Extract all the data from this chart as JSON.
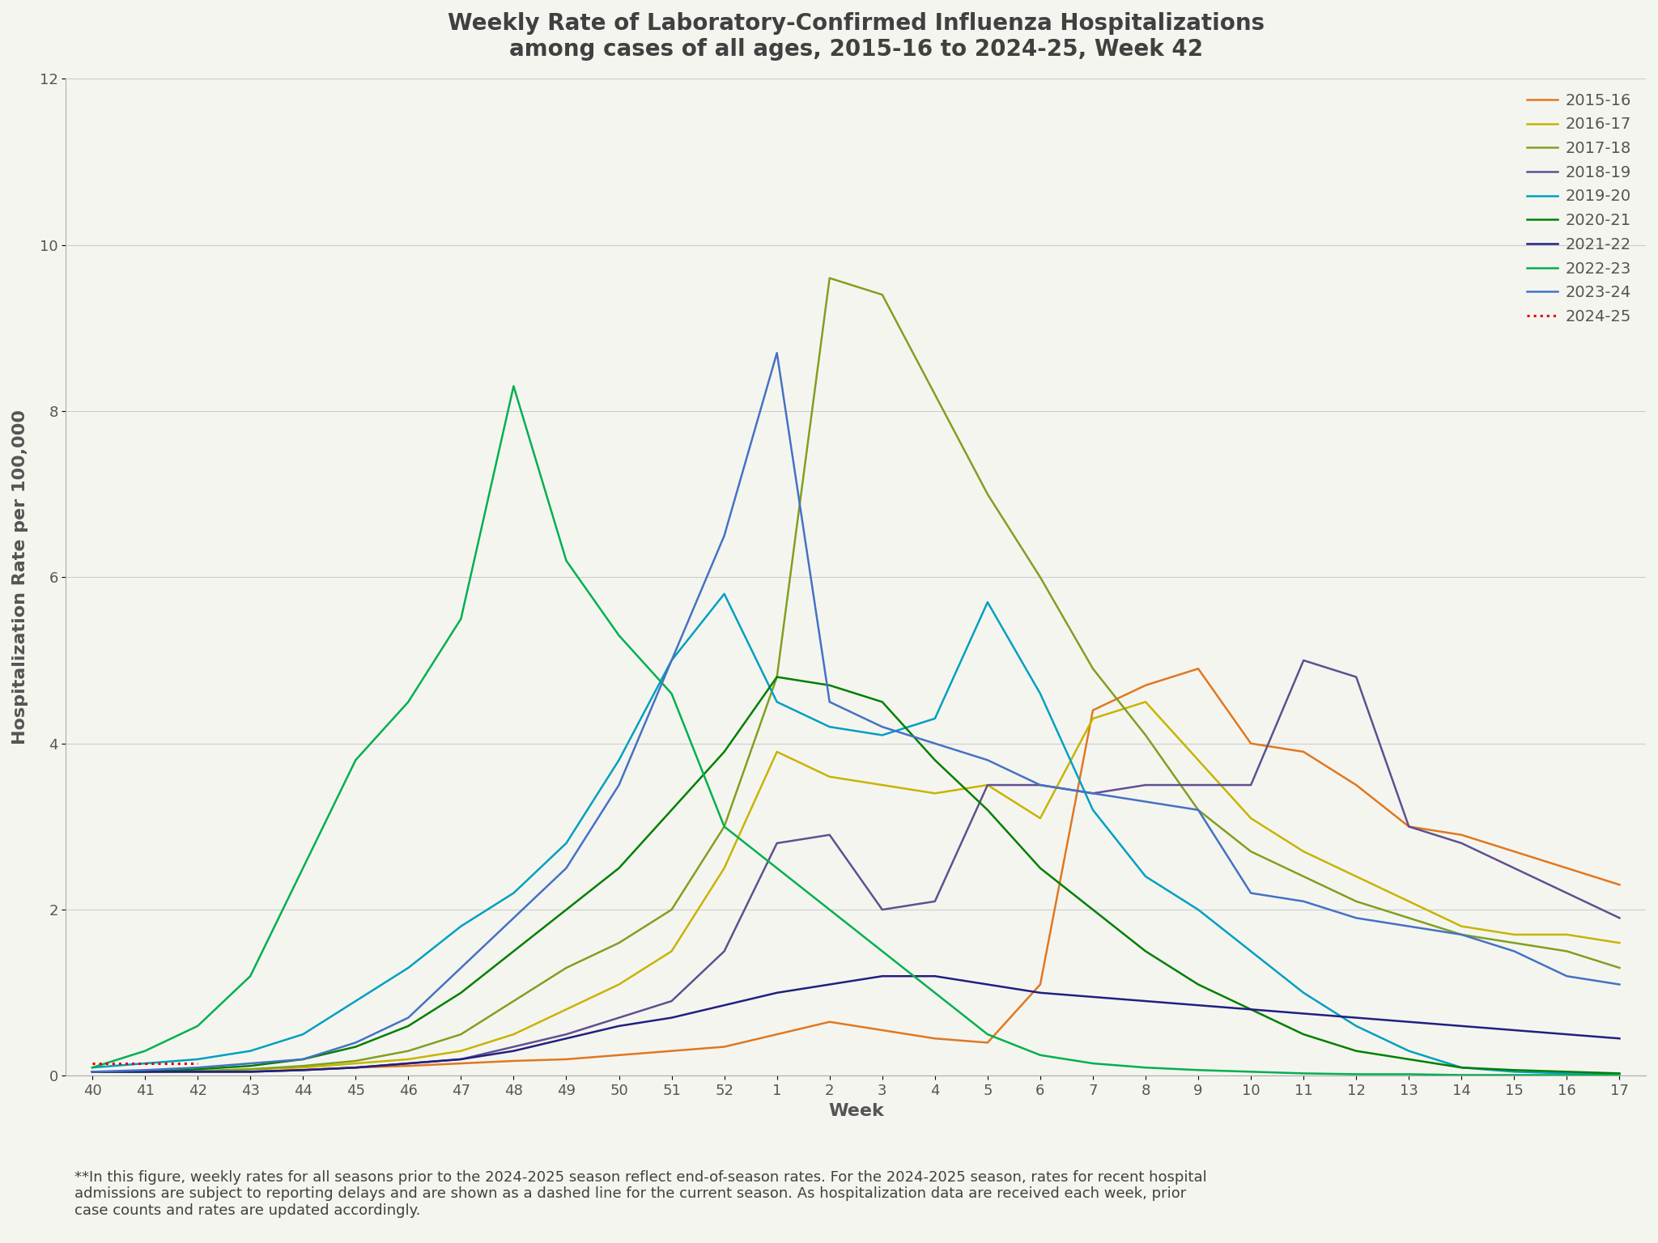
{
  "title": "Weekly Rate of Laboratory-Confirmed Influenza Hospitalizations\namong cases of all ages, 2015-16 to 2024-25, Week 42",
  "xlabel": "Week",
  "ylabel": "Hospitalization Rate per 100,000",
  "background_color": "#f5f5f0",
  "title_fontsize": 20,
  "axis_label_fontsize": 16,
  "tick_fontsize": 13,
  "legend_fontsize": 14,
  "footnote_fontsize": 13,
  "footnote": "**In this figure, weekly rates for all seasons prior to the 2024-2025 season reflect end-of-season rates. For the 2024-2025 season, rates for recent hospital\nadmissions are subject to reporting delays and are shown as a dashed line for the current season. As hospitalization data are received each week, prior\ncase counts and rates are updated accordingly.",
  "x_labels": [
    "40",
    "41",
    "42",
    "43",
    "44",
    "45",
    "46",
    "47",
    "48",
    "49",
    "50",
    "51",
    "52",
    "1",
    "2",
    "3",
    "4",
    "5",
    "6",
    "7",
    "8",
    "9",
    "10",
    "11",
    "12",
    "13",
    "14",
    "15",
    "16",
    "17"
  ],
  "ylim": [
    0,
    12
  ],
  "yticks": [
    0,
    2,
    4,
    6,
    8,
    10,
    12
  ],
  "seasons": {
    "2015-16": {
      "color": "#e07820",
      "linestyle": "-",
      "linewidth": 1.8,
      "data": [
        0.05,
        0.05,
        0.05,
        0.05,
        0.07,
        0.1,
        0.12,
        0.15,
        0.18,
        0.2,
        0.25,
        0.3,
        0.35,
        0.5,
        0.65,
        0.55,
        0.45,
        0.4,
        1.1,
        4.4,
        4.7,
        4.9,
        4.0,
        3.9,
        3.5,
        3.0,
        2.9,
        2.7,
        2.5,
        2.3
      ]
    },
    "2016-17": {
      "color": "#c8b400",
      "linestyle": "-",
      "linewidth": 1.8,
      "data": [
        0.05,
        0.05,
        0.05,
        0.08,
        0.1,
        0.15,
        0.2,
        0.3,
        0.5,
        0.8,
        1.1,
        1.5,
        2.5,
        3.9,
        3.6,
        3.5,
        3.4,
        3.5,
        3.1,
        4.3,
        4.5,
        3.8,
        3.1,
        2.7,
        2.4,
        2.1,
        1.8,
        1.7,
        1.7,
        1.6
      ]
    },
    "2017-18": {
      "color": "#80a020",
      "linestyle": "-",
      "linewidth": 1.8,
      "data": [
        0.05,
        0.05,
        0.06,
        0.08,
        0.12,
        0.18,
        0.3,
        0.5,
        0.9,
        1.3,
        1.6,
        2.0,
        3.0,
        4.8,
        9.6,
        9.4,
        8.2,
        7.0,
        6.0,
        4.9,
        4.1,
        3.2,
        2.7,
        2.4,
        2.1,
        1.9,
        1.7,
        1.6,
        1.5,
        1.3
      ]
    },
    "2018-19": {
      "color": "#605090",
      "linestyle": "-",
      "linewidth": 1.8,
      "data": [
        0.05,
        0.05,
        0.05,
        0.05,
        0.07,
        0.1,
        0.15,
        0.2,
        0.35,
        0.5,
        0.7,
        0.9,
        1.5,
        2.8,
        2.9,
        2.0,
        2.1,
        3.5,
        3.5,
        3.4,
        3.5,
        3.5,
        3.5,
        5.0,
        4.8,
        3.0,
        2.8,
        2.5,
        2.2,
        1.9
      ]
    },
    "2019-20": {
      "color": "#00a0c0",
      "linestyle": "-",
      "linewidth": 1.8,
      "data": [
        0.1,
        0.15,
        0.2,
        0.3,
        0.5,
        0.9,
        1.3,
        1.8,
        2.2,
        2.8,
        3.8,
        5.0,
        5.8,
        4.5,
        4.2,
        4.1,
        4.3,
        5.7,
        4.6,
        3.2,
        2.4,
        2.0,
        1.5,
        1.0,
        0.6,
        0.3,
        0.1,
        0.05,
        0.03,
        0.02
      ]
    },
    "2020-21": {
      "color": "#008000",
      "linestyle": "-",
      "linewidth": 1.8,
      "data": [
        0.05,
        0.05,
        0.08,
        0.12,
        0.2,
        0.35,
        0.6,
        1.0,
        1.5,
        2.0,
        2.5,
        3.2,
        3.9,
        4.8,
        4.7,
        4.5,
        3.8,
        3.2,
        2.5,
        2.0,
        1.5,
        1.1,
        0.8,
        0.5,
        0.3,
        0.2,
        0.1,
        0.07,
        0.05,
        0.03
      ]
    },
    "2021-22": {
      "color": "#202080",
      "linestyle": "-",
      "linewidth": 1.8,
      "data": [
        0.05,
        0.05,
        0.05,
        0.05,
        0.07,
        0.1,
        0.15,
        0.2,
        0.3,
        0.45,
        0.6,
        0.7,
        0.85,
        1.0,
        1.1,
        1.2,
        1.2,
        1.1,
        1.0,
        0.95,
        0.9,
        0.85,
        0.8,
        0.75,
        0.7,
        0.65,
        0.6,
        0.55,
        0.5,
        0.45
      ]
    },
    "2022-23": {
      "color": "#00b050",
      "linestyle": "-",
      "linewidth": 1.8,
      "data": [
        0.1,
        0.3,
        0.6,
        1.2,
        2.5,
        3.8,
        4.5,
        5.5,
        8.3,
        6.2,
        5.3,
        4.6,
        3.0,
        2.5,
        2.0,
        1.5,
        1.0,
        0.5,
        0.25,
        0.15,
        0.1,
        0.07,
        0.05,
        0.03,
        0.02,
        0.02,
        0.01,
        0.01,
        0.01,
        0.01
      ]
    },
    "2023-24": {
      "color": "#4472c4",
      "linestyle": "-",
      "linewidth": 1.8,
      "data": [
        0.05,
        0.07,
        0.1,
        0.15,
        0.2,
        0.4,
        0.7,
        1.3,
        1.9,
        2.5,
        3.5,
        5.0,
        6.5,
        8.7,
        4.5,
        4.2,
        4.0,
        3.8,
        3.5,
        3.4,
        3.3,
        3.2,
        2.2,
        2.1,
        1.9,
        1.8,
        1.7,
        1.5,
        1.2,
        1.1
      ]
    },
    "2024-25": {
      "color": "#e00000",
      "linestyle": ":",
      "linewidth": 2.2,
      "data": [
        0.15,
        0.15,
        0.15,
        null,
        null,
        null,
        null,
        null,
        null,
        null,
        null,
        null,
        null,
        null,
        null,
        null,
        null,
        null,
        null,
        null,
        null,
        null,
        null,
        null,
        null,
        null,
        null,
        null,
        null,
        null
      ]
    }
  }
}
